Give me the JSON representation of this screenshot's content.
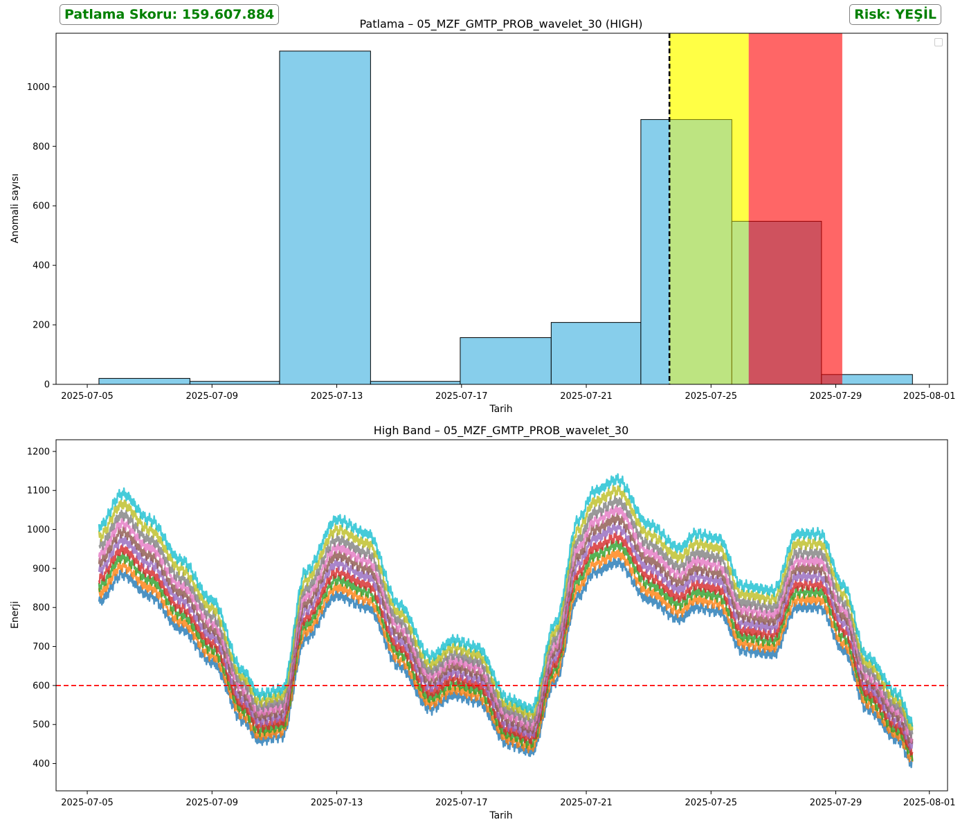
{
  "header": {
    "score_text": "Patlama Skoru: 159.607.884",
    "risk_text": "Risk: YEŞİL",
    "status_color": "#008000"
  },
  "chart_data": [
    {
      "type": "bar",
      "title": "Patlama – 05_MZF_GMTP_PROB_wavelet_30 (HIGH)",
      "xlabel": "Tarih",
      "ylabel": "Anomali sayısı",
      "xlim": [
        "2025-07-04",
        "2025-08-01 14:00"
      ],
      "ylim": [
        0,
        1180
      ],
      "x_ticks": [
        "2025-07-05",
        "2025-07-09",
        "2025-07-13",
        "2025-07-17",
        "2025-07-21",
        "2025-07-25",
        "2025-07-29",
        "2025-08-01"
      ],
      "y_ticks": [
        0,
        200,
        400,
        600,
        800,
        1000
      ],
      "legend": "upper right (empty)",
      "grid": false,
      "histogram": {
        "color": "#87CEEB",
        "bins": [
          {
            "start": "2025-07-05 09:00",
            "end": "2025-07-08 07:00",
            "count": 20
          },
          {
            "start": "2025-07-08 07:00",
            "end": "2025-07-11 04:00",
            "count": 10
          },
          {
            "start": "2025-07-11 04:00",
            "end": "2025-07-14 02:00",
            "count": 1120
          },
          {
            "start": "2025-07-14 02:00",
            "end": "2025-07-16 23:00",
            "count": 10
          },
          {
            "start": "2025-07-16 23:00",
            "end": "2025-07-19 21:00",
            "count": 157
          },
          {
            "start": "2025-07-19 21:00",
            "end": "2025-07-22 18:00",
            "count": 208
          },
          {
            "start": "2025-07-22 18:00",
            "end": "2025-07-25 16:00",
            "count": 890
          },
          {
            "start": "2025-07-25 16:00",
            "end": "2025-07-28 13:00",
            "count": 548
          },
          {
            "start": "2025-07-28 13:00",
            "end": "2025-07-31 11:00",
            "count": 33
          }
        ]
      },
      "forecast_line": {
        "date": "2025-07-23 16:00",
        "color": "#000000",
        "style": "dashed"
      },
      "zones": [
        {
          "start": "2025-07-23 16:00",
          "end": "2025-07-26 05:00",
          "color": "#FFFF00",
          "alpha": 0.5
        },
        {
          "start": "2025-07-26 05:00",
          "end": "2025-07-29 05:00",
          "color": "#FF0000",
          "alpha": 0.6
        }
      ]
    },
    {
      "type": "line",
      "title": "High Band – 05_MZF_GMTP_PROB_wavelet_30",
      "xlabel": "Tarih",
      "ylabel": "Enerji",
      "xlim": [
        "2025-07-04",
        "2025-08-01 14:00"
      ],
      "ylim": [
        330,
        1230
      ],
      "x_ticks": [
        "2025-07-05",
        "2025-07-09",
        "2025-07-13",
        "2025-07-17",
        "2025-07-21",
        "2025-07-25",
        "2025-07-29",
        "2025-08-01"
      ],
      "y_ticks": [
        400,
        500,
        600,
        700,
        800,
        900,
        1000,
        1100,
        1200
      ],
      "threshold": {
        "value": 600,
        "color": "#FF0000",
        "style": "dashed"
      },
      "grid": false,
      "base_curve": {
        "x": [
          "2025-07-05 09:00",
          "2025-07-06 03:00",
          "2025-07-07 00:00",
          "2025-07-08 00:00",
          "2025-07-09 00:00",
          "2025-07-10 00:00",
          "2025-07-10 12:00",
          "2025-07-11 06:00",
          "2025-07-12 00:00",
          "2025-07-13 00:00",
          "2025-07-14 00:00",
          "2025-07-15 00:00",
          "2025-07-16 00:00",
          "2025-07-16 18:00",
          "2025-07-17 12:00",
          "2025-07-18 12:00",
          "2025-07-19 06:00",
          "2025-07-20 00:00",
          "2025-07-20 18:00",
          "2025-07-21 06:00",
          "2025-07-22 00:00",
          "2025-07-23 00:00",
          "2025-07-24 00:00",
          "2025-07-24 12:00",
          "2025-07-25 06:00",
          "2025-07-26 00:00",
          "2025-07-27 00:00",
          "2025-07-27 18:00",
          "2025-07-28 12:00",
          "2025-07-29 06:00",
          "2025-07-30 00:00",
          "2025-07-31 00:00",
          "2025-07-31 11:00"
        ],
        "y": [
          815,
          885,
          830,
          745,
          660,
          510,
          460,
          470,
          720,
          830,
          800,
          650,
          540,
          575,
          560,
          450,
          430,
          610,
          830,
          890,
          915,
          820,
          770,
          800,
          790,
          690,
          680,
          800,
          800,
          690,
          540,
          460,
          400
        ]
      },
      "series": [
        {
          "color": "#1f77b4",
          "offset": 0
        },
        {
          "color": "#ff7f0e",
          "offset": 20
        },
        {
          "color": "#2ca02c",
          "offset": 40
        },
        {
          "color": "#d62728",
          "offset": 58
        },
        {
          "color": "#9467bd",
          "offset": 80
        },
        {
          "color": "#8c564b",
          "offset": 100
        },
        {
          "color": "#e377c2",
          "offset": 120
        },
        {
          "color": "#7f7f7f",
          "offset": 140
        },
        {
          "color": "#bcbd22",
          "offset": 165
        },
        {
          "color": "#17becf",
          "offset": 190
        }
      ]
    }
  ]
}
